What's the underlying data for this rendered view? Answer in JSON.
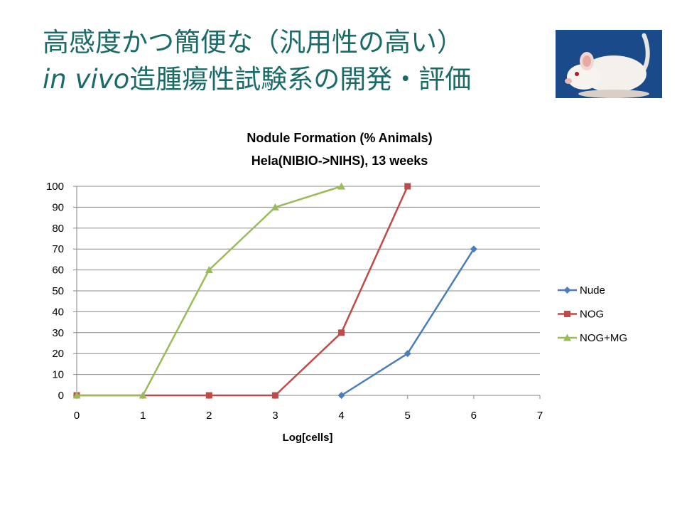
{
  "slide": {
    "title_line1": "高感度かつ簡便な（汎用性の高い）",
    "title_line2_italic": "in vivo",
    "title_line2_rest": "造腫瘍性試験系の開発・評価"
  },
  "image": {
    "icon": "white-mouse-photo",
    "background": "#1a4a8a"
  },
  "chart_data": {
    "type": "scatter",
    "title": "Nodule Formation (% Animals)",
    "subtitle": "Hela(NIBIO->NIHS), 13 weeks",
    "xlabel": "Log[cells]",
    "ylabel": "",
    "xlim": [
      0,
      7
    ],
    "ylim": [
      0,
      100
    ],
    "xticks": [
      0,
      1,
      2,
      3,
      4,
      5,
      6,
      7
    ],
    "yticks": [
      0,
      10,
      20,
      30,
      40,
      50,
      60,
      70,
      80,
      90,
      100
    ],
    "grid": "horizontal",
    "legend_position": "right",
    "series": [
      {
        "name": "Nude",
        "color": "#4a7ebb",
        "marker": "diamond",
        "points": [
          [
            4,
            0
          ],
          [
            5,
            20
          ],
          [
            6,
            70
          ]
        ]
      },
      {
        "name": "NOG",
        "color": "#be4b48",
        "marker": "square",
        "points": [
          [
            0,
            0
          ],
          [
            2,
            0
          ],
          [
            3,
            0
          ],
          [
            4,
            30
          ],
          [
            5,
            100
          ]
        ]
      },
      {
        "name": "NOG+MG",
        "color": "#9bbb59",
        "marker": "triangle",
        "points": [
          [
            0,
            0
          ],
          [
            1,
            0
          ],
          [
            2,
            60
          ],
          [
            3,
            90
          ],
          [
            4,
            100
          ]
        ]
      }
    ]
  }
}
